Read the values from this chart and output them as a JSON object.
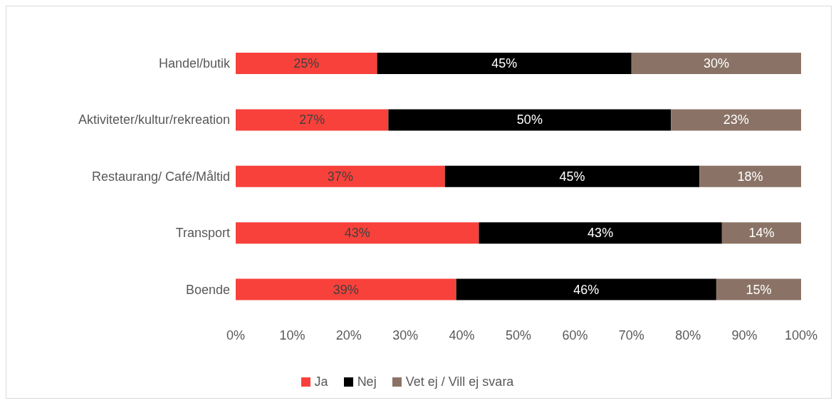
{
  "chart_data": {
    "type": "bar",
    "orientation": "horizontal",
    "stacked": true,
    "legend": "bottom",
    "categories": [
      "Handel/butik",
      "Aktiviteter/kultur/rekreation",
      "Restaurang/ Café/Måltid",
      "Transport",
      "Boende"
    ],
    "series": [
      {
        "name": "Ja",
        "color": "#f8413a",
        "values": [
          25,
          27,
          37,
          43,
          39
        ],
        "value_labels": [
          "25%",
          "27%",
          "37%",
          "43%",
          "39%"
        ]
      },
      {
        "name": "Nej",
        "color": "#000000",
        "values": [
          45,
          50,
          45,
          43,
          46
        ],
        "value_labels": [
          "45%",
          "50%",
          "45%",
          "43%",
          "46%"
        ]
      },
      {
        "name": "Vet ej / Vill ej svara",
        "color": "#8a7366",
        "values": [
          30,
          23,
          18,
          14,
          15
        ],
        "value_labels": [
          "30%",
          "23%",
          "18%",
          "14%",
          "15%"
        ]
      }
    ],
    "xlim": [
      0,
      100
    ],
    "xticks": [
      {
        "value": 0,
        "label": "0%"
      },
      {
        "value": 10,
        "label": "10%"
      },
      {
        "value": 20,
        "label": "20%"
      },
      {
        "value": 30,
        "label": "30%"
      },
      {
        "value": 40,
        "label": "40%"
      },
      {
        "value": 50,
        "label": "50%"
      },
      {
        "value": 60,
        "label": "60%"
      },
      {
        "value": 70,
        "label": "70%"
      },
      {
        "value": 80,
        "label": "80%"
      },
      {
        "value": 90,
        "label": "90%"
      },
      {
        "value": 100,
        "label": "100%"
      }
    ]
  }
}
